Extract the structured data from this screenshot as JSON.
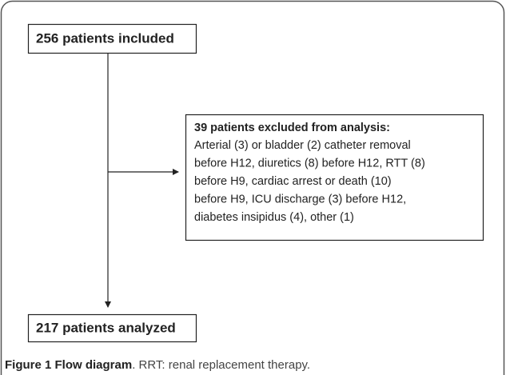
{
  "nodes": [
    {
      "label": "256 patients included"
    },
    {
      "title": "39 patients excluded from analysis:",
      "lines": [
        "Arterial (3) or bladder (2) catheter removal",
        "before H12, diuretics (8) before H12, RTT (8)",
        "before H9, cardiac arrest or death (10)",
        "before H9, ICU discharge (3) before H12,",
        "diabetes insipidus (4), other (1)"
      ]
    },
    {
      "label": "217 patients analyzed"
    }
  ],
  "caption": {
    "label": "Figure 1 Flow diagram",
    "text": ". RRT: renal replacement therapy."
  }
}
